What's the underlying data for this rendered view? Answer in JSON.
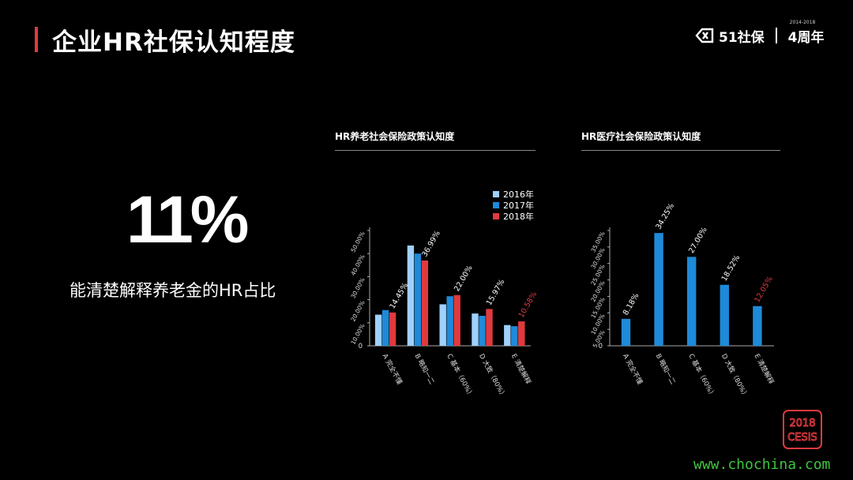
{
  "header": {
    "title": "企业HR社保认知程度",
    "logo_text": "51社保",
    "logo_years": "4周年",
    "logo_range": "2014-2018"
  },
  "highlight": {
    "value": "11%",
    "caption": "能清楚解释养老金的HR占比"
  },
  "badge": {
    "line1": "2018",
    "line2": "CESIS"
  },
  "watermark": "www.chochina.com",
  "colors": {
    "accent_red": "#e03a3e",
    "c2016": "#9fd0ff",
    "c2017": "#1e8ad8",
    "c2018": "#e03a3e"
  },
  "chart_data": [
    {
      "type": "bar",
      "title": "HR养老社会保险政策认知度",
      "categories": [
        "A 完全不懂",
        "B 略知一二",
        "C 基本（60%）",
        "D 大致（80%）",
        "E 清楚解释"
      ],
      "series": [
        {
          "name": "2016年",
          "values": [
            13.5,
            43.5,
            18.0,
            14.0,
            9.0
          ]
        },
        {
          "name": "2017年",
          "values": [
            15.5,
            40.0,
            21.5,
            13.0,
            8.5
          ]
        },
        {
          "name": "2018年",
          "values": [
            14.45,
            36.99,
            22.0,
            15.97,
            10.58
          ]
        }
      ],
      "data_labels": [
        "14.45%",
        "36.99%",
        "22.00%",
        "15.97%",
        "10.58%"
      ],
      "ytick_labels": [
        "0",
        "10.00%",
        "20.00%",
        "30.00%",
        "40.00%",
        "50.00%"
      ],
      "ylim": [
        0,
        50
      ],
      "legend_position": "top-right"
    },
    {
      "type": "bar",
      "title": "HR医疗社会保险政策认知度",
      "categories": [
        "A 完全不懂",
        "B 略知一二",
        "C 基本（60%）",
        "D 大致（80%）",
        "E 清楚解释"
      ],
      "series": [
        {
          "values": [
            8.18,
            34.25,
            27.0,
            18.52,
            12.05
          ]
        }
      ],
      "data_labels": [
        "8.18%",
        "34.25%",
        "27.00%",
        "18.52%",
        "12.05%"
      ],
      "ytick_labels": [
        "0",
        "5.00%",
        "10.00%",
        "15.00%",
        "20.00%",
        "25.00%",
        "30.00%",
        "35.00%"
      ],
      "ylim": [
        0,
        35
      ]
    }
  ]
}
